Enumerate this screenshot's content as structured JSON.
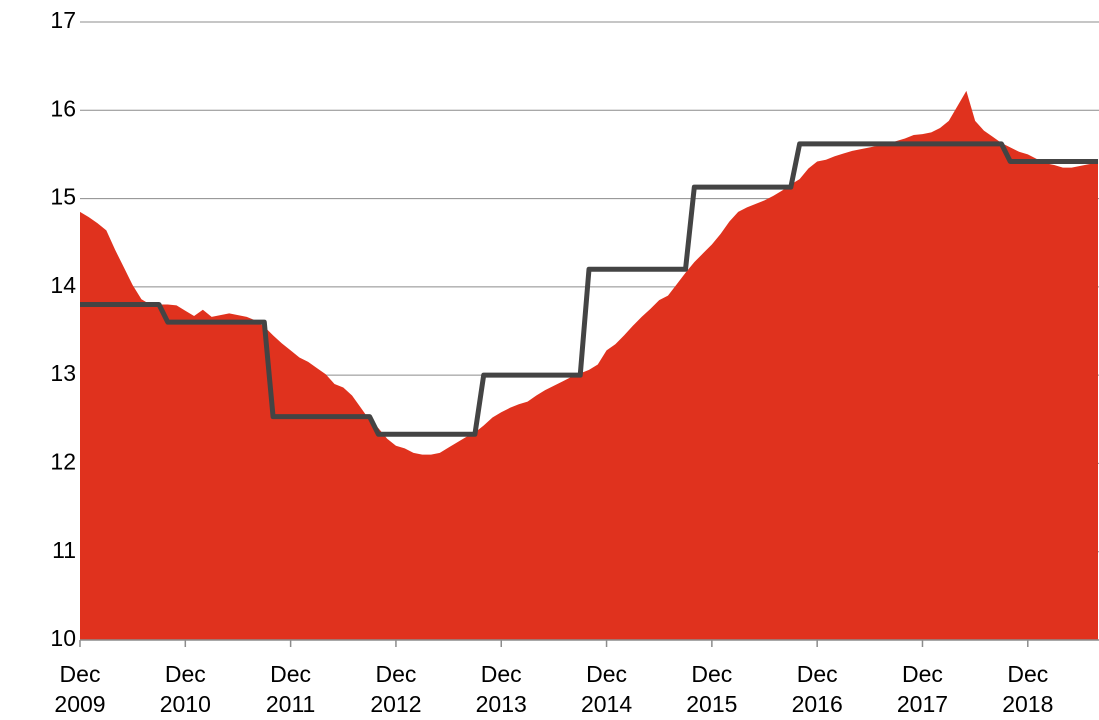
{
  "chart_data": {
    "type": "area",
    "x": [
      "2009-12",
      "2010-01",
      "2010-02",
      "2010-03",
      "2010-04",
      "2010-05",
      "2010-06",
      "2010-07",
      "2010-08",
      "2010-09",
      "2010-10",
      "2010-11",
      "2010-12",
      "2011-01",
      "2011-02",
      "2011-03",
      "2011-04",
      "2011-05",
      "2011-06",
      "2011-07",
      "2011-08",
      "2011-09",
      "2011-10",
      "2011-11",
      "2011-12",
      "2012-01",
      "2012-02",
      "2012-03",
      "2012-04",
      "2012-05",
      "2012-06",
      "2012-07",
      "2012-08",
      "2012-09",
      "2012-10",
      "2012-11",
      "2012-12",
      "2013-01",
      "2013-02",
      "2013-03",
      "2013-04",
      "2013-05",
      "2013-06",
      "2013-07",
      "2013-08",
      "2013-09",
      "2013-10",
      "2013-11",
      "2013-12",
      "2014-01",
      "2014-02",
      "2014-03",
      "2014-04",
      "2014-05",
      "2014-06",
      "2014-07",
      "2014-08",
      "2014-09",
      "2014-10",
      "2014-11",
      "2014-12",
      "2015-01",
      "2015-02",
      "2015-03",
      "2015-04",
      "2015-05",
      "2015-06",
      "2015-07",
      "2015-08",
      "2015-09",
      "2015-10",
      "2015-11",
      "2015-12",
      "2016-01",
      "2016-02",
      "2016-03",
      "2016-04",
      "2016-05",
      "2016-06",
      "2016-07",
      "2016-08",
      "2016-09",
      "2016-10",
      "2016-11",
      "2016-12",
      "2017-01",
      "2017-02",
      "2017-03",
      "2017-04",
      "2017-05",
      "2017-06",
      "2017-07",
      "2017-08",
      "2017-09",
      "2017-10",
      "2017-11",
      "2017-12",
      "2018-01",
      "2018-02",
      "2018-03",
      "2018-04",
      "2018-05",
      "2018-06",
      "2018-07",
      "2018-08",
      "2018-09",
      "2018-10",
      "2018-11",
      "2018-12",
      "2019-01",
      "2019-02",
      "2019-03",
      "2019-04",
      "2019-05",
      "2019-06",
      "2019-07",
      "2019-08"
    ],
    "series": [
      {
        "type": "area",
        "color": "#e0321e",
        "values": [
          14.85,
          14.79,
          14.72,
          14.64,
          14.42,
          14.22,
          14.02,
          13.86,
          13.8,
          13.8,
          13.8,
          13.79,
          13.73,
          13.67,
          13.74,
          13.66,
          13.68,
          13.7,
          13.68,
          13.66,
          13.62,
          13.55,
          13.45,
          13.36,
          13.28,
          13.2,
          13.15,
          13.08,
          13.01,
          12.9,
          12.86,
          12.77,
          12.63,
          12.49,
          12.4,
          12.28,
          12.2,
          12.17,
          12.12,
          12.1,
          12.1,
          12.12,
          12.18,
          12.24,
          12.3,
          12.35,
          12.43,
          12.52,
          12.58,
          12.63,
          12.67,
          12.7,
          12.77,
          12.83,
          12.88,
          12.93,
          12.98,
          13.02,
          13.06,
          13.12,
          13.28,
          13.35,
          13.45,
          13.56,
          13.66,
          13.75,
          13.85,
          13.9,
          14.03,
          14.16,
          14.28,
          14.38,
          14.48,
          14.6,
          14.74,
          14.85,
          14.9,
          14.94,
          14.98,
          15.03,
          15.09,
          15.16,
          15.22,
          15.34,
          15.42,
          15.44,
          15.48,
          15.51,
          15.54,
          15.56,
          15.58,
          15.6,
          15.62,
          15.65,
          15.68,
          15.72,
          15.73,
          15.75,
          15.8,
          15.88,
          16.05,
          16.22,
          15.88,
          15.77,
          15.7,
          15.63,
          15.58,
          15.53,
          15.5,
          15.45,
          15.4,
          15.38,
          15.35,
          15.35,
          15.37,
          15.39,
          15.4
        ]
      },
      {
        "type": "line",
        "color": "#444444",
        "values": [
          13.8,
          13.8,
          13.8,
          13.8,
          13.8,
          13.8,
          13.8,
          13.8,
          13.8,
          13.8,
          13.6,
          13.6,
          13.6,
          13.6,
          13.6,
          13.6,
          13.6,
          13.6,
          13.6,
          13.6,
          13.6,
          13.6,
          12.53,
          12.53,
          12.53,
          12.53,
          12.53,
          12.53,
          12.53,
          12.53,
          12.53,
          12.53,
          12.53,
          12.53,
          12.33,
          12.33,
          12.33,
          12.33,
          12.33,
          12.33,
          12.33,
          12.33,
          12.33,
          12.33,
          12.33,
          12.33,
          13.0,
          13.0,
          13.0,
          13.0,
          13.0,
          13.0,
          13.0,
          13.0,
          13.0,
          13.0,
          13.0,
          13.0,
          14.2,
          14.2,
          14.2,
          14.2,
          14.2,
          14.2,
          14.2,
          14.2,
          14.2,
          14.2,
          14.2,
          14.2,
          15.13,
          15.13,
          15.13,
          15.13,
          15.13,
          15.13,
          15.13,
          15.13,
          15.13,
          15.13,
          15.13,
          15.13,
          15.62,
          15.62,
          15.62,
          15.62,
          15.62,
          15.62,
          15.62,
          15.62,
          15.62,
          15.62,
          15.62,
          15.62,
          15.62,
          15.62,
          15.62,
          15.62,
          15.62,
          15.62,
          15.62,
          15.62,
          15.62,
          15.62,
          15.62,
          15.62,
          15.42,
          15.42,
          15.42,
          15.42,
          15.42,
          15.42,
          15.42,
          15.42,
          15.42,
          15.42,
          15.42
        ]
      }
    ],
    "ylim": [
      10,
      17
    ],
    "yticks": [
      10,
      11,
      12,
      13,
      14,
      15,
      16,
      17
    ],
    "xticks": [
      {
        "value": "2009-12",
        "label": [
          "Dec",
          "2009"
        ]
      },
      {
        "value": "2010-12",
        "label": [
          "Dec",
          "2010"
        ]
      },
      {
        "value": "2011-12",
        "label": [
          "Dec",
          "2011"
        ]
      },
      {
        "value": "2012-12",
        "label": [
          "Dec",
          "2012"
        ]
      },
      {
        "value": "2013-12",
        "label": [
          "Dec",
          "2013"
        ]
      },
      {
        "value": "2014-12",
        "label": [
          "Dec",
          "2014"
        ]
      },
      {
        "value": "2015-12",
        "label": [
          "Dec",
          "2015"
        ]
      },
      {
        "value": "2016-12",
        "label": [
          "Dec",
          "2016"
        ]
      },
      {
        "value": "2017-12",
        "label": [
          "Dec",
          "2017"
        ]
      },
      {
        "value": "2018-12",
        "label": [
          "Dec",
          "2018"
        ]
      }
    ],
    "grid": true
  }
}
